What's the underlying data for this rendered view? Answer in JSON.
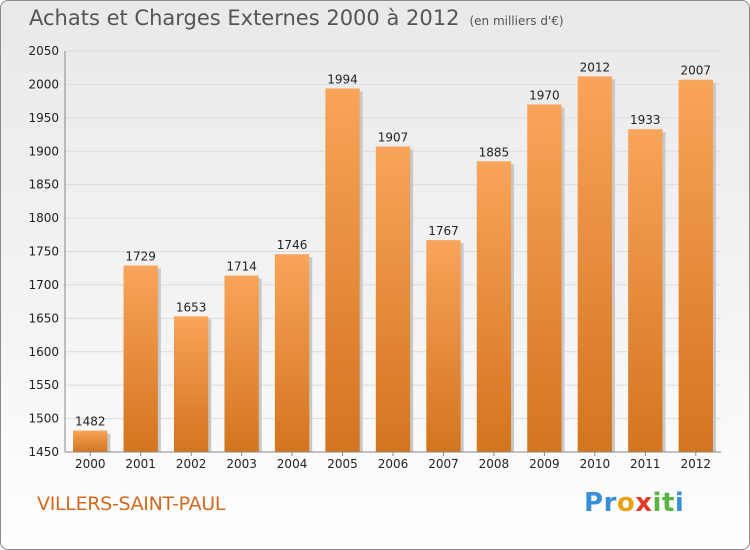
{
  "title": "Achats et Charges Externes 2000 à 2012",
  "subtitle": "(en milliers d'€)",
  "location": "VILLERS-SAINT-PAUL",
  "brand": {
    "letters": [
      "P",
      "r",
      "o",
      "x",
      "i",
      "t",
      "i"
    ],
    "colors": [
      "#3a8fd6",
      "#3a8fd6",
      "#e8a21a",
      "#e23b2a",
      "#58b540",
      "#58b540",
      "#3a8fd6"
    ]
  },
  "colors": {
    "bar_light": "#f8a45a",
    "bar_dark": "#d4741e",
    "grid": "#dcdcdc",
    "axis": "#888888",
    "title": "#555555",
    "location": "#d2691e"
  },
  "chart_data": {
    "type": "bar",
    "categories": [
      "2000",
      "2001",
      "2002",
      "2003",
      "2004",
      "2005",
      "2006",
      "2007",
      "2008",
      "2009",
      "2010",
      "2011",
      "2012"
    ],
    "values": [
      1482,
      1729,
      1653,
      1714,
      1746,
      1994,
      1907,
      1767,
      1885,
      1970,
      2012,
      1933,
      2007
    ],
    "ylim": [
      1450,
      2050
    ],
    "yticks": [
      1450,
      1500,
      1550,
      1600,
      1650,
      1700,
      1750,
      1800,
      1850,
      1900,
      1950,
      2000,
      2050
    ],
    "grid": true,
    "data_labels": true
  }
}
